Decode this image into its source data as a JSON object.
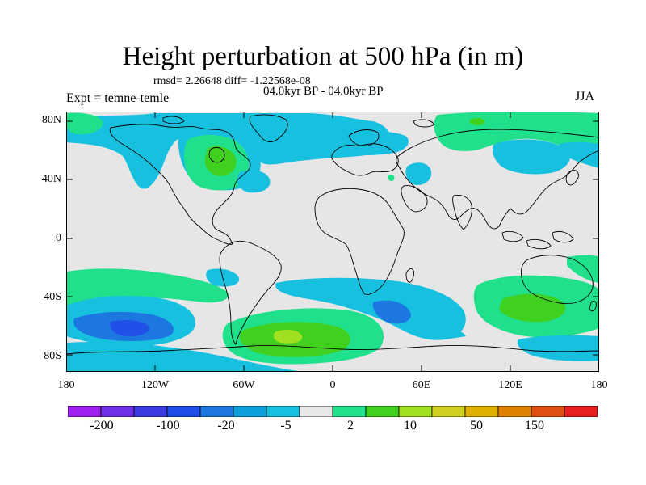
{
  "header": {
    "title": "Height perturbation at 500 hPa (in m)",
    "stats": "rmsd= 2.26648 diff= -1.22568e-08",
    "period": "04.0kyr BP - 04.0kyr BP",
    "experiment": "Expt = temne-temle",
    "season": "JJA"
  },
  "axes": {
    "y_ticks": [
      "80N",
      "40N",
      "0",
      "40S",
      "80S"
    ],
    "x_ticks": [
      "180",
      "120W",
      "60W",
      "0",
      "60E",
      "120E",
      "180"
    ]
  },
  "colorbar": {
    "labels": [
      "-200",
      "-100",
      "-20",
      "-5",
      "2",
      "10",
      "50",
      "150"
    ],
    "colors": [
      "#a020f0",
      "#7030e8",
      "#3c3ce0",
      "#2050e8",
      "#1c78e0",
      "#0ca0dc",
      "#18c0e0",
      "#e8e8e8",
      "#20e08c",
      "#40d020",
      "#a0e020",
      "#d0d020",
      "#e0b000",
      "#e08000",
      "#e05010",
      "#e82020"
    ]
  },
  "colors": {
    "background": "#e6e6e6",
    "coast": "#000000"
  }
}
